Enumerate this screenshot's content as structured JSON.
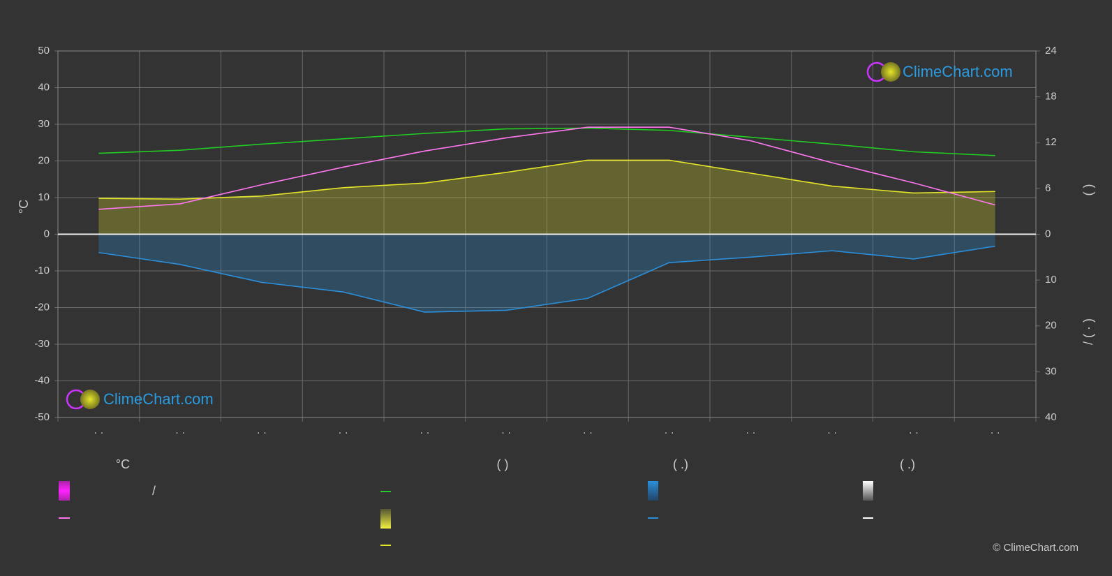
{
  "chart_data": {
    "type": "line",
    "y_label": "°C",
    "y2_label": "(          )",
    "y3_label": "/     ( · )",
    "categories": [
      "· ·",
      "· ·",
      "· ·",
      "· ·",
      "· ·",
      "· ·",
      "· ·",
      "· ·",
      "· ·",
      "· ·",
      "· ·",
      "· ·"
    ],
    "ylim": [
      -50,
      50
    ],
    "yticks": [
      50,
      40,
      30,
      20,
      10,
      0,
      -10,
      -20,
      -30,
      -40,
      -50
    ],
    "y2lim": [
      0,
      24
    ],
    "y2ticks": [
      0,
      6,
      12,
      18,
      24
    ],
    "y3lim": [
      0,
      40
    ],
    "y3ticks": [
      10,
      20,
      30,
      40
    ],
    "grid": true,
    "series": [
      {
        "color": "#22cc22",
        "axis": "y2",
        "values": [
          10.6,
          11.0,
          11.8,
          12.5,
          13.2,
          13.8,
          13.9,
          13.6,
          12.7,
          11.8,
          10.8,
          10.3
        ]
      },
      {
        "color": "#e5e52a",
        "axis": "y2",
        "area": true,
        "values": [
          4.7,
          4.6,
          5.0,
          6.1,
          6.7,
          8.1,
          9.7,
          9.7,
          8.0,
          6.3,
          5.4,
          5.6
        ]
      },
      {
        "color": "#ff77ee",
        "axis": "y",
        "values": [
          6.8,
          8.3,
          13.5,
          18.3,
          22.7,
          26.3,
          29.2,
          29.2,
          25.5,
          19.5,
          14.0,
          8.0
        ]
      },
      {
        "color": "#2b8fdb",
        "axis": "y3",
        "area": true,
        "values": [
          4.0,
          6.6,
          10.5,
          12.6,
          17.0,
          16.6,
          14.0,
          6.2,
          5.0,
          3.6,
          5.4,
          2.6
        ]
      }
    ],
    "legend": {
      "headers": [
        "°C",
        "(          )",
        "(   .)",
        "(   .)"
      ],
      "slash": "/"
    },
    "logo": "ClimeChart.com",
    "copyright": "© ClimeChart.com"
  }
}
